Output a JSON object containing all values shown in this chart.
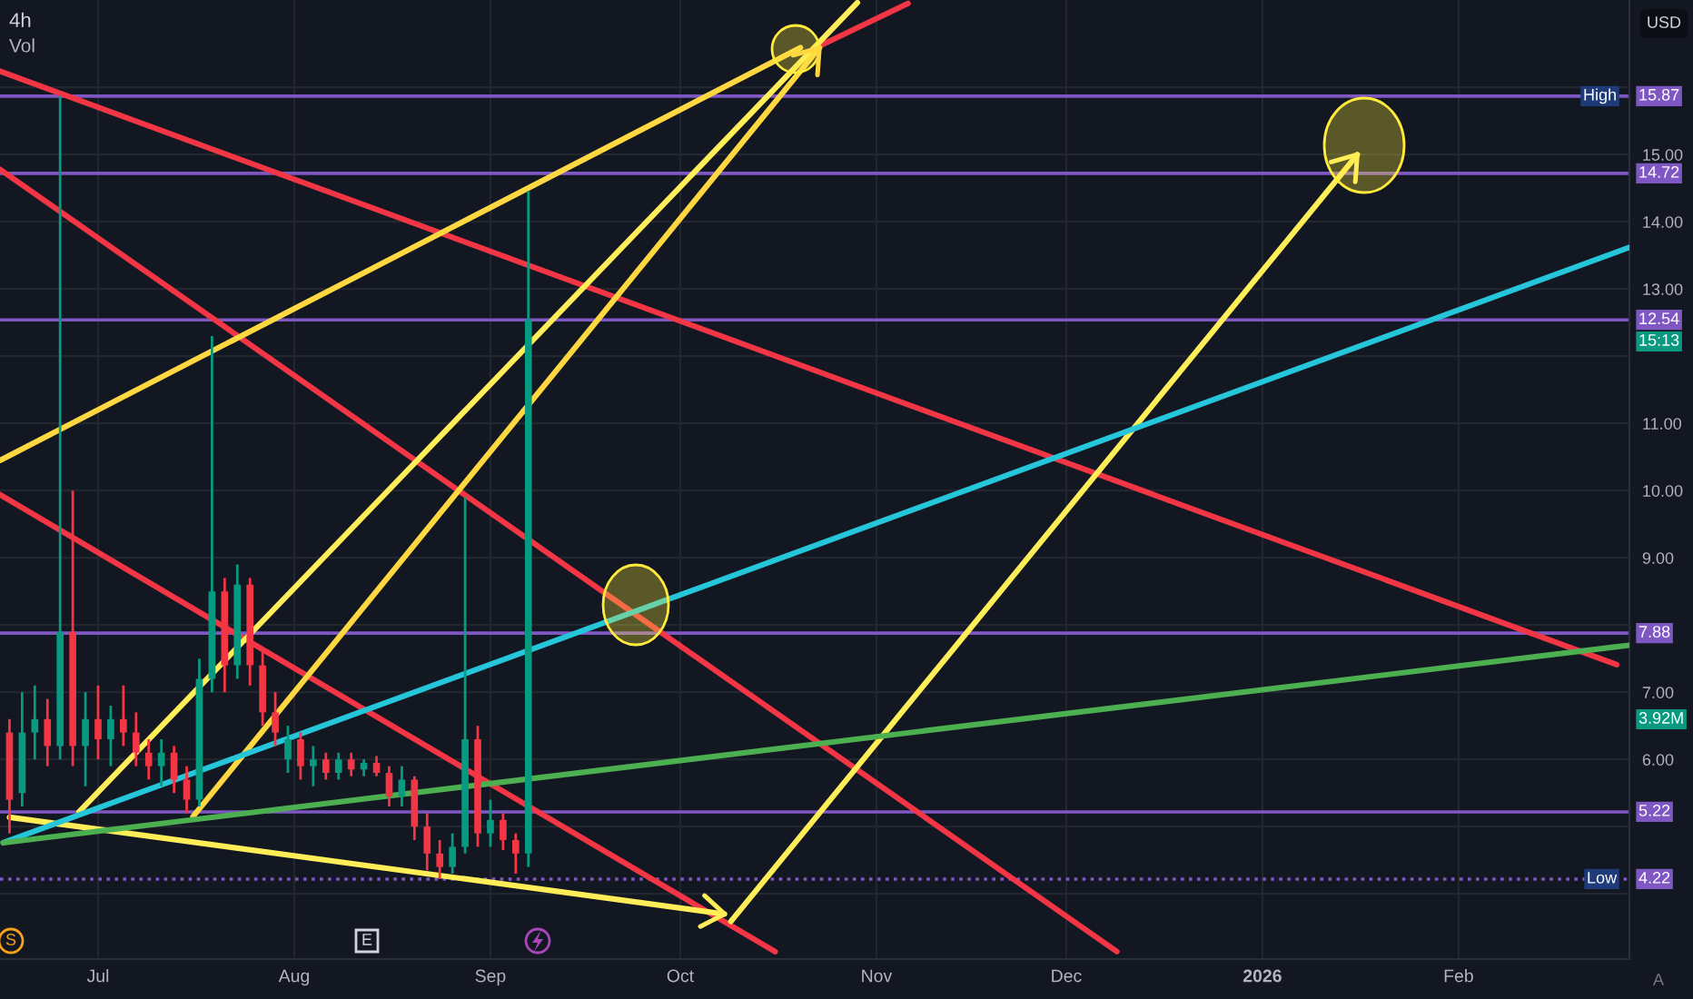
{
  "chart_data": {
    "type": "candlestick",
    "title": "4h",
    "ylabel": "USD",
    "x": [
      "2025-06-17",
      "2025-06-19",
      "2025-06-21",
      "2025-06-23",
      "2025-06-25",
      "2025-06-27",
      "2025-06-29",
      "2025-07-01",
      "2025-07-03",
      "2025-07-05",
      "2025-07-07",
      "2025-07-09",
      "2025-07-11",
      "2025-07-13",
      "2025-07-15",
      "2025-07-17",
      "2025-07-19",
      "2025-07-21",
      "2025-07-23",
      "2025-07-25",
      "2025-07-27",
      "2025-07-29",
      "2025-07-31",
      "2025-08-02",
      "2025-08-04",
      "2025-08-06",
      "2025-08-08",
      "2025-08-10",
      "2025-08-12",
      "2025-08-14",
      "2025-08-16",
      "2025-08-18",
      "2025-08-20",
      "2025-08-22",
      "2025-08-24",
      "2025-08-26",
      "2025-08-28",
      "2025-08-30",
      "2025-09-01",
      "2025-09-03",
      "2025-09-05",
      "2025-09-07"
    ],
    "ohlc": [
      [
        6.4,
        6.6,
        4.9,
        5.4
      ],
      [
        5.5,
        7.0,
        5.3,
        6.4
      ],
      [
        6.4,
        7.1,
        6.0,
        6.6
      ],
      [
        6.6,
        6.9,
        5.9,
        6.2
      ],
      [
        6.2,
        15.87,
        6.0,
        7.9
      ],
      [
        7.9,
        10.0,
        5.9,
        6.2
      ],
      [
        6.2,
        7.0,
        5.6,
        6.6
      ],
      [
        6.6,
        7.1,
        6.0,
        6.3
      ],
      [
        6.3,
        6.8,
        5.9,
        6.6
      ],
      [
        6.6,
        7.1,
        6.2,
        6.4
      ],
      [
        6.4,
        6.7,
        5.9,
        6.1
      ],
      [
        6.1,
        6.3,
        5.7,
        5.9
      ],
      [
        5.9,
        6.3,
        5.6,
        6.1
      ],
      [
        6.1,
        6.2,
        5.5,
        5.7
      ],
      [
        5.7,
        5.9,
        5.2,
        5.4
      ],
      [
        5.4,
        7.5,
        5.3,
        7.2
      ],
      [
        7.2,
        12.3,
        7.0,
        8.5
      ],
      [
        8.5,
        8.7,
        7.0,
        7.4
      ],
      [
        7.4,
        8.9,
        7.2,
        8.6
      ],
      [
        8.6,
        8.7,
        7.1,
        7.4
      ],
      [
        7.4,
        7.6,
        6.5,
        6.7
      ],
      [
        6.7,
        7.0,
        6.2,
        6.4
      ],
      [
        6.0,
        6.5,
        5.8,
        6.3
      ],
      [
        6.3,
        6.4,
        5.7,
        5.9
      ],
      [
        5.9,
        6.2,
        5.6,
        6.0
      ],
      [
        6.0,
        6.1,
        5.7,
        5.8
      ],
      [
        5.8,
        6.1,
        5.7,
        6.0
      ],
      [
        6.0,
        6.1,
        5.75,
        5.85
      ],
      [
        5.85,
        6.0,
        5.75,
        5.95
      ],
      [
        5.95,
        6.05,
        5.75,
        5.8
      ],
      [
        5.8,
        5.9,
        5.3,
        5.45
      ],
      [
        5.45,
        5.9,
        5.3,
        5.7
      ],
      [
        5.7,
        5.75,
        4.8,
        5.0
      ],
      [
        5.0,
        5.2,
        4.35,
        4.6
      ],
      [
        4.6,
        4.8,
        4.22,
        4.4
      ],
      [
        4.4,
        4.9,
        4.3,
        4.7
      ],
      [
        4.7,
        9.9,
        4.6,
        6.3
      ],
      [
        6.3,
        6.5,
        4.7,
        4.9
      ],
      [
        4.9,
        5.4,
        4.7,
        5.1
      ],
      [
        5.1,
        5.2,
        4.65,
        4.8
      ],
      [
        4.8,
        4.9,
        4.3,
        4.6
      ],
      [
        4.6,
        14.46,
        4.4,
        12.54
      ]
    ],
    "colors": [
      "#f23645",
      "#089981",
      "#089981",
      "#f23645",
      "#089981",
      "#f23645",
      "#089981",
      "#f23645",
      "#089981",
      "#f23645",
      "#f23645",
      "#f23645",
      "#089981",
      "#f23645",
      "#f23645",
      "#089981",
      "#089981",
      "#f23645",
      "#089981",
      "#f23645",
      "#f23645",
      "#f23645",
      "#089981",
      "#f23645",
      "#089981",
      "#f23645",
      "#089981",
      "#f23645",
      "#089981",
      "#f23645",
      "#f23645",
      "#089981",
      "#f23645",
      "#f23645",
      "#f23645",
      "#089981",
      "#089981",
      "#f23645",
      "#089981",
      "#f23645",
      "#f23645",
      "#089981"
    ],
    "series": [
      {
        "type": "line",
        "color": "#f23645",
        "x": [
          "2025-06-15T12:00",
          "2026-02-26"
        ],
        "values": [
          16.24,
          7.41
        ]
      },
      {
        "type": "line",
        "color": "#f23645",
        "x": [
          "2025-06-15T12:00",
          "2025-12-09"
        ],
        "values": [
          14.78,
          3.14
        ]
      },
      {
        "type": "line",
        "color": "#f23645",
        "x": [
          "2025-06-15T12:00",
          "2025-10-16"
        ],
        "values": [
          9.94,
          3.14
        ]
      },
      {
        "type": "line",
        "color": "#f23645",
        "x": [
          "2025-10-22",
          "2025-11-06"
        ],
        "values": [
          16.57,
          17.25
        ]
      },
      {
        "type": "line",
        "color": "#ffd740",
        "x": [
          "2025-06-15T12:00",
          "2025-10-20"
        ],
        "values": [
          10.45,
          16.59
        ]
      },
      {
        "type": "line",
        "color": "#ffee58",
        "x": [
          "2025-06-28",
          "2025-10-29"
        ],
        "values": [
          5.22,
          17.26
        ]
      },
      {
        "type": "line",
        "color": "#ffd740",
        "x": [
          "2025-07-16",
          "2025-10-23"
        ],
        "values": [
          5.15,
          16.59
        ]
      },
      {
        "type": "line",
        "color": "#ffee58",
        "x": [
          "2025-06-17",
          "2025-10-08"
        ],
        "values": [
          5.14,
          3.7
        ]
      },
      {
        "type": "line",
        "color": "#ffee58",
        "x": [
          "2025-10-09",
          "2026-01-16"
        ],
        "values": [
          3.59,
          15.0
        ]
      },
      {
        "type": "line",
        "color": "#26c6da",
        "x": [
          "2025-06-16",
          "2026-02-28"
        ],
        "values": [
          4.76,
          13.62
        ]
      },
      {
        "type": "line",
        "color": "#4caf50",
        "x": [
          "2025-06-16",
          "2026-02-28"
        ],
        "values": [
          4.76,
          7.7
        ]
      }
    ],
    "ref_lines": [
      {
        "axis": "y",
        "value": 15.87,
        "label": "15.87",
        "color": "#7e57c2"
      },
      {
        "axis": "y",
        "value": 14.72,
        "label": "14.72",
        "color": "#7e57c2"
      },
      {
        "axis": "y",
        "value": 12.54,
        "label": "12.54",
        "color": "#7e57c2"
      },
      {
        "axis": "y",
        "value": 7.88,
        "label": "7.88",
        "color": "#7e57c2"
      },
      {
        "axis": "y",
        "value": 5.22,
        "label": "5.22",
        "color": "#7e57c2"
      },
      {
        "axis": "y",
        "value": 4.22,
        "label": "4.22",
        "color": "#7e57c2",
        "line_style": "dotted"
      }
    ],
    "annotations": [
      "Vol",
      "15:13",
      "3.92M",
      "S",
      "E",
      "A",
      {
        "text": "High",
        "x": "2026-02-28",
        "y": 15.87
      },
      {
        "text": "Low",
        "x": "2026-02-28",
        "y": 4.22
      }
    ],
    "xlim": [
      "2025-06-15T12:00",
      "2026-02-28"
    ],
    "xticks": [
      {
        "value": "2025-07-01",
        "label": "Jul"
      },
      {
        "value": "2025-08-01",
        "label": "Aug"
      },
      {
        "value": "2025-09-01",
        "label": "Sep"
      },
      {
        "value": "2025-10-01",
        "label": "Oct"
      },
      {
        "value": "2025-11-01",
        "label": "Nov"
      },
      {
        "value": "2025-12-01",
        "label": "Dec"
      },
      {
        "value": "2026-01-01",
        "label": "2026"
      },
      {
        "value": "2026-02-01",
        "label": "Feb"
      }
    ],
    "ylim": [
      3.03,
      17.3
    ],
    "yticks": [
      {
        "value": 4,
        "label": null
      },
      {
        "value": 5,
        "label": null
      },
      {
        "value": 6,
        "label": "6.00"
      },
      {
        "value": 7,
        "label": "7.00"
      },
      {
        "value": 8,
        "label": null
      },
      {
        "value": 9,
        "label": "9.00"
      },
      {
        "value": 10,
        "label": "10.00"
      },
      {
        "value": 11,
        "label": "11.00"
      },
      {
        "value": 12,
        "label": null
      },
      {
        "value": 13,
        "label": "13.00"
      },
      {
        "value": 14,
        "label": "14.00"
      },
      {
        "value": 15,
        "label": "15.00"
      },
      {
        "value": 16,
        "label": null
      }
    ],
    "grid": true
  }
}
